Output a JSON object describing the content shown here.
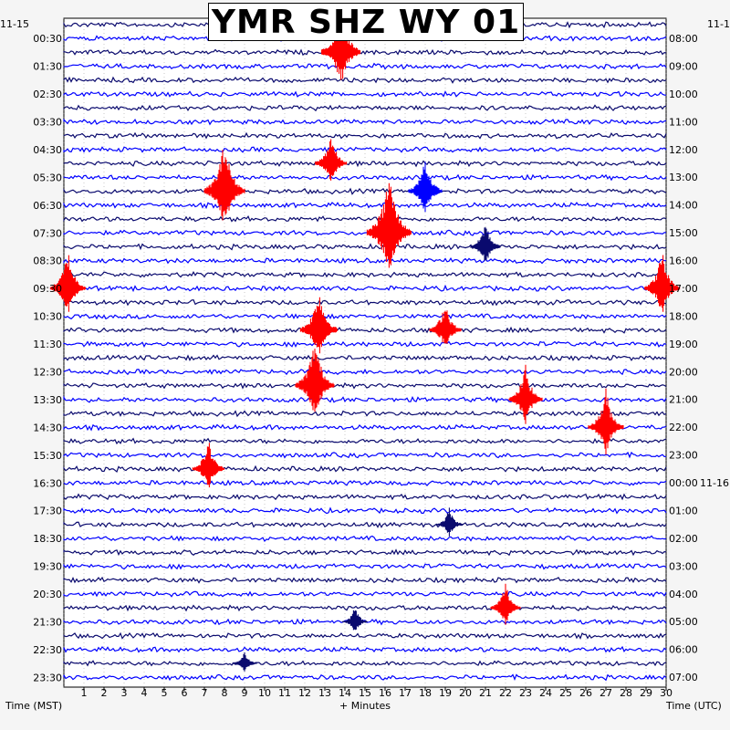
{
  "title": "YMR SHZ WY 01",
  "left_date": "11-15",
  "right_date_top": "11-1",
  "right_date_mid": "11-16",
  "x_caption": "+ Minutes",
  "left_axis_caption": "Time (MST)",
  "right_axis_caption": "Time (UTC)",
  "colors": {
    "trace_dark": "#0a0a6e",
    "trace_blue": "#0000ff",
    "trace_red": "#ff0000",
    "background": "#ffffff",
    "grid": "#777777"
  },
  "chart_data": {
    "type": "line",
    "description_label": "Helicorder seismogram",
    "x_ticks": [
      "1",
      "2",
      "3",
      "4",
      "5",
      "6",
      "7",
      "8",
      "9",
      "10",
      "11",
      "12",
      "13",
      "14",
      "15",
      "16",
      "17",
      "18",
      "19",
      "20",
      "21",
      "22",
      "23",
      "24",
      "25",
      "26",
      "27",
      "28",
      "29",
      "30"
    ],
    "xlim": [
      0,
      30
    ],
    "rows": 48,
    "row_minutes": 30,
    "left_time_labels": [
      "00:30",
      "01:30",
      "02:30",
      "03:30",
      "04:30",
      "05:30",
      "06:30",
      "07:30",
      "08:30",
      "09:30",
      "10:30",
      "11:30",
      "12:30",
      "13:30",
      "14:30",
      "15:30",
      "16:30",
      "17:30",
      "18:30",
      "19:30",
      "20:30",
      "21:30",
      "22:30",
      "23:30"
    ],
    "right_time_labels": [
      "08:00",
      "09:00",
      "10:00",
      "11:00",
      "12:00",
      "13:00",
      "14:00",
      "15:00",
      "16:00",
      "17:00",
      "18:00",
      "19:00",
      "20:00",
      "21:00",
      "22:00",
      "23:00",
      "00:00",
      "01:00",
      "02:00",
      "03:00",
      "04:00",
      "05:00",
      "06:00",
      "07:00"
    ],
    "trace_color_cycle": [
      "dark",
      "blue"
    ],
    "events": [
      {
        "row": 2,
        "minute": 13.8,
        "amp": 55,
        "color": "red"
      },
      {
        "row": 10,
        "minute": 13.3,
        "amp": 35,
        "color": "red"
      },
      {
        "row": 12,
        "minute": 8.0,
        "amp": 60,
        "color": "red"
      },
      {
        "row": 12,
        "minute": 18.0,
        "amp": 40,
        "color": "blue"
      },
      {
        "row": 15,
        "minute": 16.2,
        "amp": 70,
        "color": "red"
      },
      {
        "row": 16,
        "minute": 21.0,
        "amp": 30,
        "color": "dark"
      },
      {
        "row": 19,
        "minute": 0.2,
        "amp": 45,
        "color": "red"
      },
      {
        "row": 19,
        "minute": 29.8,
        "amp": 45,
        "color": "red"
      },
      {
        "row": 22,
        "minute": 12.7,
        "amp": 50,
        "color": "red"
      },
      {
        "row": 22,
        "minute": 19.0,
        "amp": 35,
        "color": "red"
      },
      {
        "row": 26,
        "minute": 12.5,
        "amp": 55,
        "color": "red"
      },
      {
        "row": 27,
        "minute": 23.0,
        "amp": 40,
        "color": "red"
      },
      {
        "row": 29,
        "minute": 27.0,
        "amp": 45,
        "color": "red"
      },
      {
        "row": 32,
        "minute": 7.2,
        "amp": 35,
        "color": "red"
      },
      {
        "row": 36,
        "minute": 19.2,
        "amp": 20,
        "color": "dark"
      },
      {
        "row": 42,
        "minute": 22.0,
        "amp": 30,
        "color": "red"
      },
      {
        "row": 43,
        "minute": 14.5,
        "amp": 18,
        "color": "dark"
      },
      {
        "row": 46,
        "minute": 9.0,
        "amp": 15,
        "color": "dark"
      }
    ]
  }
}
